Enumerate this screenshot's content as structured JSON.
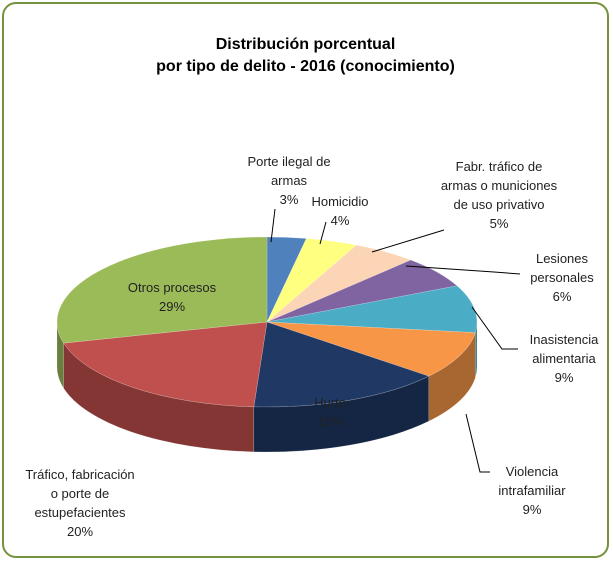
{
  "chart_data": {
    "type": "pie",
    "title": [
      "Distribución porcentual",
      "por tipo de delito  - 2016 (conocimiento)"
    ],
    "categories": [
      "Porte ilegal de armas",
      "Homicidio",
      "Fabr. tráfico de armas o municiones de uso privativo",
      "Lesiones personales",
      "Inasistencia alimentaria",
      "Violencia intrafamiliar",
      "Hurto",
      "Tráfico, fabricación o porte de estupefacientes",
      "Otros procesos"
    ],
    "values": [
      3,
      4,
      5,
      6,
      9,
      9,
      15,
      20,
      29
    ],
    "value_labels": [
      "3%",
      "4%",
      "5%",
      "6%",
      "9%",
      "9%",
      "15%",
      "20%",
      "29%"
    ],
    "colors": [
      "#4f81bd",
      "#ffff80",
      "#fbd5b5",
      "#8064a2",
      "#4bacc6",
      "#f79646",
      "#1f3864",
      "#c0504d",
      "#9bbb59"
    ]
  }
}
